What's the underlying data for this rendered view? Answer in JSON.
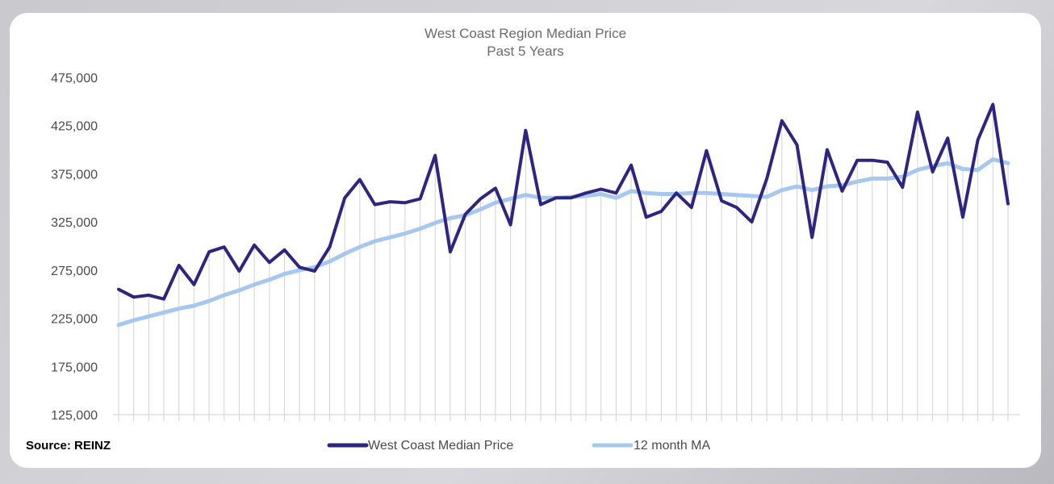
{
  "chart_data": {
    "type": "line",
    "title": "West Coast Region Median Price",
    "subtitle": "Past 5 Years",
    "source": "Source: REINZ",
    "ylim": [
      125000,
      475000
    ],
    "yticks": [
      "475,000",
      "425,000",
      "375,000",
      "325,000",
      "275,000",
      "225,000",
      "175,000",
      "125,000"
    ],
    "ytick_values": [
      475000,
      425000,
      375000,
      325000,
      275000,
      225000,
      175000,
      125000
    ],
    "legend_position": "bottom",
    "grid": "vertical drop lines per month",
    "series": [
      {
        "name": "West Coast Median Price",
        "color": "#2e2580",
        "values": [
          255000,
          247000,
          249000,
          245000,
          280000,
          260000,
          294000,
          299000,
          274000,
          301000,
          283000,
          296000,
          278000,
          274000,
          299000,
          350000,
          369000,
          343000,
          346000,
          345000,
          349000,
          394000,
          294000,
          333000,
          349000,
          360000,
          322000,
          420000,
          343000,
          350000,
          350000,
          355000,
          359000,
          355000,
          384000,
          330000,
          336000,
          355000,
          340000,
          399000,
          347000,
          340000,
          325000,
          370000,
          430000,
          405000,
          309000,
          400000,
          357000,
          389000,
          389000,
          387000,
          361000,
          439000,
          377000,
          412000,
          330000,
          410000,
          447000,
          344000
        ]
      },
      {
        "name": "12 month MA",
        "color": "#a7c8ee",
        "values": [
          218000,
          223000,
          227000,
          231000,
          235000,
          238000,
          243000,
          249000,
          254000,
          260000,
          265000,
          271000,
          275000,
          278000,
          284000,
          292000,
          299000,
          305000,
          309000,
          313000,
          318000,
          324000,
          329000,
          332000,
          338000,
          345000,
          349000,
          353000,
          350000,
          350000,
          351000,
          352000,
          354000,
          350000,
          357000,
          355000,
          354000,
          354000,
          355000,
          355000,
          354000,
          353000,
          352000,
          351000,
          358000,
          362000,
          358000,
          362000,
          363000,
          367000,
          370000,
          370000,
          372000,
          379000,
          383000,
          386000,
          380000,
          379000,
          390000,
          386000
        ]
      }
    ]
  }
}
